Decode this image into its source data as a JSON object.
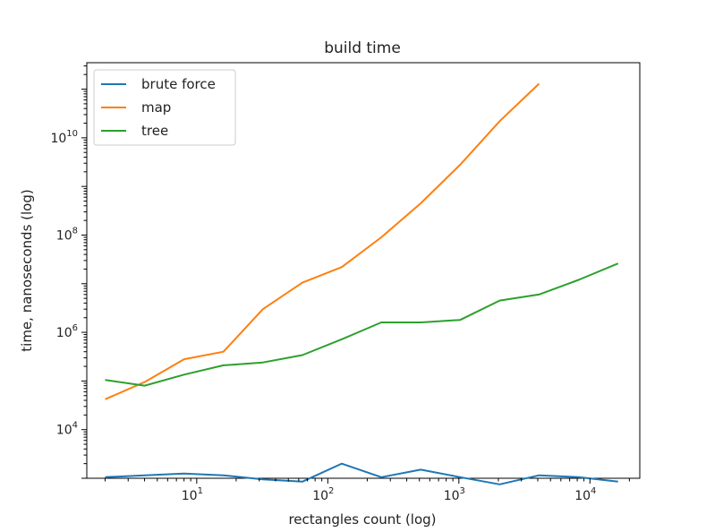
{
  "chart_data": {
    "type": "line",
    "title": "build time",
    "xlabel": "rectangles count (log)",
    "ylabel": "time, nanoseconds (log)",
    "xscale": "log",
    "yscale": "log",
    "xlim": [
      1.45,
      24000
    ],
    "ylim": [
      1000,
      350000000000
    ],
    "x_ticks": [
      {
        "value": 10,
        "base": "10",
        "exp": "1"
      },
      {
        "value": 100,
        "base": "10",
        "exp": "2"
      },
      {
        "value": 1000,
        "base": "10",
        "exp": "3"
      },
      {
        "value": 10000,
        "base": "10",
        "exp": "4"
      }
    ],
    "y_ticks": [
      {
        "value": 10000,
        "base": "10",
        "exp": "4"
      },
      {
        "value": 1000000,
        "base": "10",
        "exp": "6"
      },
      {
        "value": 100000000,
        "base": "10",
        "exp": "8"
      },
      {
        "value": 10000000000,
        "base": "10",
        "exp": "10"
      }
    ],
    "grid": false,
    "legend_position": "top-left",
    "x": [
      2,
      4,
      8,
      16,
      32,
      64,
      128,
      256,
      512,
      1024,
      2048,
      4096,
      8192,
      16384
    ],
    "series": [
      {
        "name": "brute force",
        "color": "#1f77b4",
        "values": [
          1050,
          1150,
          1250,
          1150,
          950,
          850,
          2000,
          1050,
          1500,
          1050,
          750,
          1150,
          1050,
          850
        ]
      },
      {
        "name": "map",
        "color": "#ff7f0e",
        "values": [
          42000,
          95000,
          280000,
          400000,
          3000000,
          10500000,
          22000000,
          90000000,
          450000000,
          2800000000,
          22000000000,
          130000000000,
          null,
          null
        ]
      },
      {
        "name": "tree",
        "color": "#2ca02c",
        "values": [
          105000,
          80000,
          135000,
          210000,
          240000,
          340000,
          720000,
          1600000,
          1600000,
          1800000,
          4500000,
          6000000,
          12000000,
          26000000
        ]
      }
    ]
  }
}
